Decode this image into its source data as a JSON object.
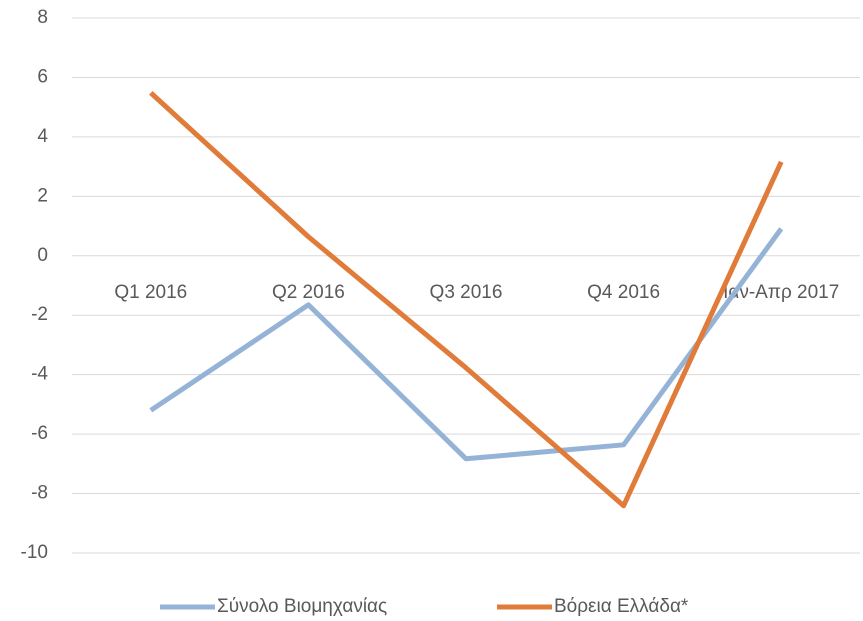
{
  "chart_data": {
    "type": "line",
    "categories": [
      "Q1 2016",
      "Q2 2016",
      "Q3 2016",
      "Q4 2016",
      "Ιαν-Απρ 2017"
    ],
    "series": [
      {
        "name": "Σύνολο Βιομηχανίας",
        "color": "#95b3d7",
        "values": [
          -5.2,
          -1.65,
          -6.83,
          -6.36,
          0.91
        ]
      },
      {
        "name": "Βόρεια Ελλάδα*",
        "color": "#e07b39",
        "values": [
          5.48,
          0.64,
          -3.77,
          -8.41,
          3.16
        ]
      }
    ],
    "ylim": [
      -10,
      8
    ],
    "yticks": [
      -10,
      -8,
      -6,
      -4,
      -2,
      0,
      2,
      4,
      6,
      8
    ],
    "grid": true,
    "legend": "bottom"
  }
}
